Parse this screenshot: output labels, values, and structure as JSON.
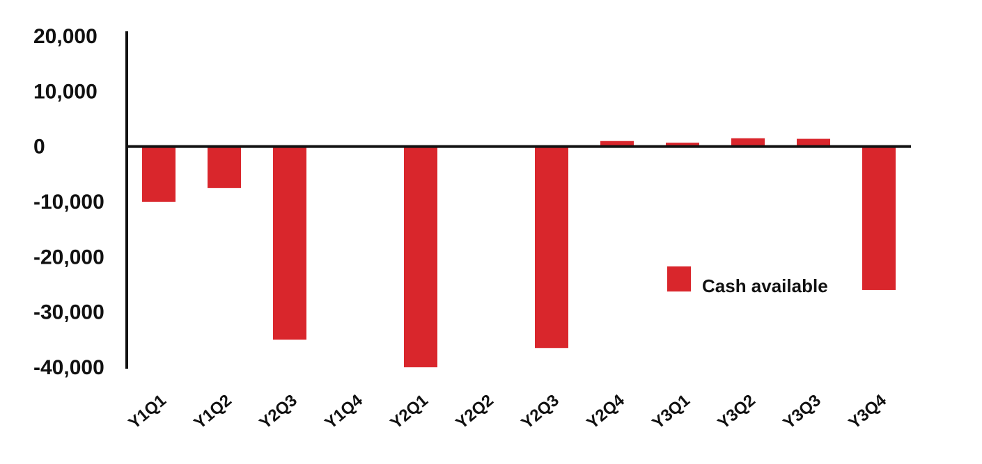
{
  "chart_data": {
    "type": "bar",
    "title": "",
    "xlabel": "",
    "ylabel": "",
    "categories": [
      "Y1Q1",
      "Y1Q2",
      "Y2Q3",
      "Y1Q4",
      "Y2Q1",
      "Y2Q2",
      "Y2Q3",
      "Y2Q4",
      "Y3Q1",
      "Y3Q2",
      "Y3Q3",
      "Y3Q4"
    ],
    "series": [
      {
        "name": "Cash available",
        "color": "#d9262c",
        "values": [
          -10000,
          -7500,
          -35000,
          0,
          -40000,
          0,
          -36500,
          1000,
          700,
          1500,
          1400,
          -26000
        ]
      }
    ],
    "ylim": [
      -40000,
      20000
    ],
    "yticks": [
      20000,
      10000,
      0,
      -10000,
      -20000,
      -30000,
      -40000
    ],
    "ytick_labels": [
      "20,000",
      "10,000",
      "0",
      "-10,000",
      "-20,000",
      "-30,000",
      "-40,000"
    ],
    "grid": false,
    "legend": {
      "position": "lower-right",
      "entries": [
        "Cash available"
      ]
    }
  }
}
